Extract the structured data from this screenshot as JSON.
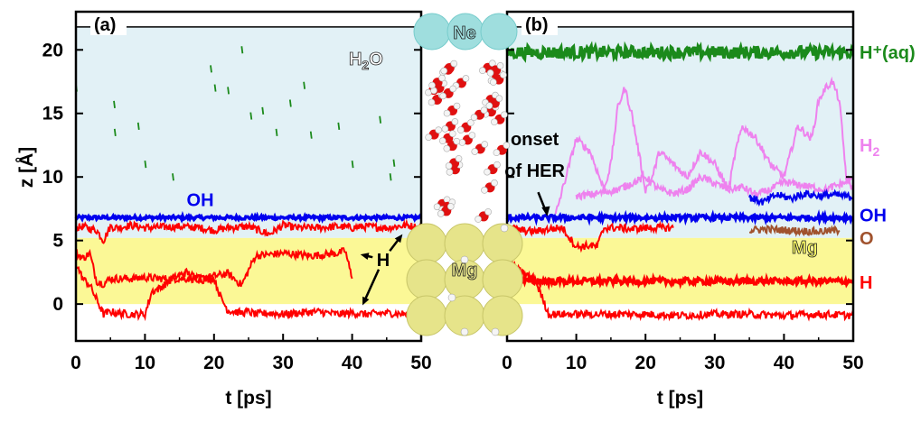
{
  "chart_data": [
    {
      "id": "a",
      "type": "line",
      "panel_label": "(a)",
      "xlabel": "t [ps]",
      "ylabel": "z [Å]",
      "xlim": [
        0,
        50
      ],
      "ylim": [
        -2.9,
        23
      ],
      "xticks": [
        0,
        10,
        20,
        30,
        40,
        50
      ],
      "yticks": [
        0,
        5,
        10,
        15,
        20
      ],
      "ytick_labels": [
        "0",
        "5",
        "10",
        "15",
        "20"
      ],
      "xtick_labels": [
        "0",
        "10",
        "20",
        "30",
        "40",
        "50"
      ],
      "regions": [
        {
          "name": "water",
          "from": 5.2,
          "to": 21.8,
          "color": "#e2f1f6"
        },
        {
          "name": "metal",
          "from": 0,
          "to": 5.2,
          "color": "#fbf896"
        },
        {
          "name": "vacuum-top",
          "from": 21.8,
          "to": 23,
          "color": "#ffffff"
        }
      ],
      "series": [
        {
          "name": "OH",
          "color": "#0000ee",
          "kind": "band",
          "level": 6.8,
          "noise": 0.15
        },
        {
          "name": "H-surface",
          "color": "#ff0000",
          "kind": "trace",
          "x": [
            0,
            1,
            3,
            4,
            5,
            6,
            8,
            10,
            15,
            18,
            20,
            22,
            25,
            28,
            30,
            32,
            35,
            38,
            40,
            42,
            45,
            48,
            50
          ],
          "y": [
            6.0,
            6.1,
            5.8,
            5.0,
            6.1,
            6.0,
            6.2,
            6.0,
            6.1,
            6.0,
            5.8,
            6.0,
            6.1,
            5.5,
            6.2,
            6.0,
            6.0,
            6.1,
            6.0,
            6.1,
            6.0,
            6.2,
            6.0
          ]
        },
        {
          "name": "H-subsurface-1",
          "color": "#ff0000",
          "kind": "trace",
          "x": [
            0,
            1,
            2,
            3,
            4,
            5,
            8,
            10,
            12,
            15,
            18,
            20,
            22,
            24,
            26,
            28,
            30,
            32,
            34,
            36,
            38,
            39,
            40
          ],
          "y": [
            4.0,
            3.6,
            4.0,
            1.8,
            1.6,
            2.0,
            2.0,
            2.1,
            2.0,
            2.0,
            2.0,
            2.2,
            2.4,
            1.5,
            3.8,
            3.9,
            4.0,
            3.9,
            3.8,
            3.9,
            4.0,
            4.2,
            2.0
          ]
        },
        {
          "name": "H-subsurface-2",
          "color": "#ff0000",
          "kind": "trace",
          "x": [
            0,
            1,
            2,
            4,
            5,
            6,
            8,
            10,
            11,
            12,
            14,
            16,
            18,
            20,
            21,
            22,
            24,
            25,
            26,
            28,
            30,
            32,
            35,
            38,
            40,
            42,
            45,
            48,
            50
          ],
          "y": [
            3.2,
            2.0,
            1.5,
            -0.8,
            -0.6,
            -0.7,
            -0.8,
            -0.8,
            1.0,
            1.2,
            2.0,
            2.5,
            1.9,
            2.0,
            0.5,
            -0.5,
            -0.7,
            -0.6,
            -0.8,
            -0.7,
            -0.8,
            -0.7,
            -0.6,
            -0.8,
            -0.7,
            -0.8,
            -0.7,
            -0.8,
            -0.8
          ]
        },
        {
          "name": "H+(aq)",
          "color": "#1b8a1b",
          "kind": "scatter",
          "x": [
            0,
            5.5,
            5.6,
            9,
            10,
            14,
            19.5,
            20.1,
            22,
            24,
            25.3,
            27,
            29,
            31,
            33,
            34,
            38,
            40,
            44,
            45.5,
            46
          ],
          "y": [
            17,
            15.7,
            13.5,
            14,
            11,
            10,
            18.5,
            17,
            16.8,
            20,
            14.8,
            15.2,
            13.5,
            15.8,
            17.2,
            13.3,
            14,
            11,
            14.5,
            10,
            11.1
          ]
        }
      ],
      "annotations": [
        {
          "text": "H",
          "sub": "2",
          "tail": "O",
          "color": "#ffffff",
          "outline": "#222222",
          "at": [
            42,
            18.8
          ]
        },
        {
          "text": "OH",
          "color": "#0000ee",
          "at": [
            18,
            7.7
          ]
        },
        {
          "text": "H",
          "color": "#000000",
          "at": [
            44.5,
            3.0
          ],
          "arrows_to": [
            [
              41.2,
              3.9
            ],
            [
              47.3,
              5.5
            ],
            [
              41.5,
              -0.1
            ]
          ]
        }
      ]
    },
    {
      "id": "b",
      "type": "line",
      "panel_label": "(b)",
      "xlabel": "t [ps]",
      "ylabel": "",
      "xlim": [
        0,
        50
      ],
      "ylim": [
        -2.9,
        23
      ],
      "xticks": [
        0,
        10,
        20,
        30,
        40,
        50
      ],
      "xtick_labels": [
        "0",
        "10",
        "20",
        "30",
        "40",
        "50"
      ],
      "yticks": [
        0,
        5,
        10,
        15,
        20
      ],
      "regions": [
        {
          "name": "water",
          "from": 5.2,
          "to": 21.8,
          "color": "#e2f1f6"
        },
        {
          "name": "metal",
          "from": 0,
          "to": 5.2,
          "color": "#fbf896"
        },
        {
          "name": "vacuum-top",
          "from": 21.8,
          "to": 23,
          "color": "#ffffff"
        }
      ],
      "series": [
        {
          "name": "H+(aq)",
          "color": "#1b8a1b",
          "kind": "band",
          "level": 19.8,
          "noise": 0.5
        },
        {
          "name": "H2",
          "color": "#ee82ee",
          "kind": "trace",
          "x": [
            7,
            8,
            9,
            10,
            12,
            14,
            15,
            16,
            17,
            18,
            19,
            20,
            21,
            22,
            24,
            26,
            28,
            30,
            32,
            33,
            34,
            36,
            38,
            40,
            42,
            44,
            45,
            46,
            47,
            48,
            49,
            50
          ],
          "y": [
            7,
            9,
            11,
            13,
            12,
            9,
            11,
            15.5,
            17,
            15,
            12,
            9,
            10,
            12,
            11,
            10,
            12,
            11,
            9,
            12,
            14,
            13,
            11,
            10,
            14,
            13,
            16,
            17,
            17.5,
            16,
            10,
            9
          ]
        },
        {
          "name": "H2-partner",
          "color": "#ee82ee",
          "kind": "trace",
          "x": [
            10,
            12,
            14,
            16,
            18,
            20,
            22,
            24,
            26,
            28,
            30,
            32,
            34,
            36,
            38,
            40,
            42,
            44,
            46,
            48,
            50
          ],
          "y": [
            8.5,
            8.6,
            8.8,
            9,
            9.5,
            10,
            9,
            8.7,
            9,
            10,
            9.5,
            9,
            9.2,
            8.6,
            9,
            9.6,
            9.4,
            9.2,
            9,
            9.4,
            9.8
          ]
        },
        {
          "name": "OH",
          "color": "#0000ee",
          "kind": "band",
          "level": 6.8,
          "noise": 0.2
        },
        {
          "name": "OH-detached",
          "color": "#0000ee",
          "kind": "trace",
          "x": [
            35,
            37,
            39,
            41,
            43,
            45,
            47,
            50
          ],
          "y": [
            8.4,
            8.0,
            8.6,
            8.3,
            8.7,
            8.5,
            8.6,
            8.4
          ]
        },
        {
          "name": "O",
          "color": "#a0522d",
          "kind": "trace",
          "x": [
            35,
            37,
            45,
            48
          ],
          "y": [
            5.8,
            5.9,
            5.7,
            5.8
          ]
        },
        {
          "name": "H-surface",
          "color": "#ff0000",
          "kind": "trace",
          "x": [
            0,
            2,
            4,
            6,
            8,
            10,
            12,
            13,
            14,
            16,
            18,
            20,
            22,
            24
          ],
          "y": [
            6.0,
            5.8,
            5.7,
            5.9,
            6.0,
            4.5,
            4.6,
            4.5,
            6.0,
            6.0,
            5.9,
            6.0,
            6.0,
            6.0
          ]
        },
        {
          "name": "H-subsurface",
          "color": "#ff0000",
          "kind": "band",
          "level": 1.8,
          "noise": 0.25
        },
        {
          "name": "H-bulk",
          "color": "#ff0000",
          "kind": "trace",
          "x": [
            0,
            2,
            4,
            6,
            8,
            10,
            15,
            20,
            25,
            30,
            35,
            40,
            45,
            50
          ],
          "y": [
            3.5,
            2.5,
            2.0,
            -0.8,
            -0.8,
            -0.8,
            -0.8,
            -0.8,
            -0.9,
            -0.8,
            -0.8,
            -0.9,
            -0.8,
            -0.9
          ]
        }
      ],
      "annotations": [
        {
          "text": "onset",
          "color": "#000000",
          "at": [
            4,
            12.5
          ]
        },
        {
          "text": "of HER",
          "color": "#000000",
          "at": [
            4,
            10
          ]
        },
        {
          "text": "Mg",
          "color": "#ffff66",
          "outline": "#222222",
          "at": [
            43,
            4.0
          ]
        }
      ],
      "right_labels": [
        {
          "text": "H⁺(aq)",
          "color": "#1b8a1b",
          "z": 19.8
        },
        {
          "text": "H",
          "sub": "2",
          "color": "#ee82ee",
          "z": 12.5
        },
        {
          "text": "OH",
          "color": "#0000ee",
          "z": 7.0
        },
        {
          "text": "O",
          "color": "#a0522d",
          "z": 5.2
        },
        {
          "text": "H",
          "color": "#ff0000",
          "z": 1.7
        }
      ]
    }
  ],
  "middle_structure": {
    "top_label": "Ne",
    "bottom_label": "Mg",
    "colors": {
      "ne": "#9fdede",
      "oxygen": "#e01010",
      "hydrogen": "#f4f4f4",
      "mg": "#e6e48a"
    }
  }
}
